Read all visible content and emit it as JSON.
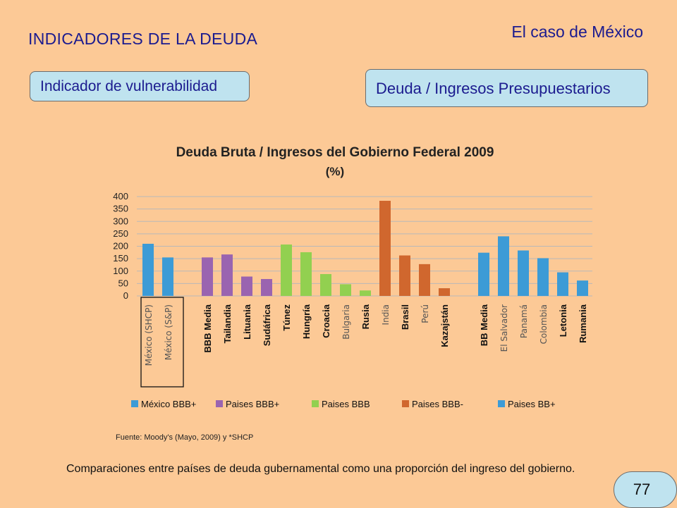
{
  "slide": {
    "title": "INDICADORES DE LA DEUDA",
    "subtitle": "El caso de México",
    "left_box": "Indicador de vulnerabilidad",
    "right_box": "Deuda / Ingresos Presupuestarios",
    "source": "Fuente: Moody's (Mayo, 2009) y *SHCP",
    "caption": "Comparaciones entre países de deuda gubernamental como una proporción del ingreso del gobierno.",
    "page_number": "77"
  },
  "chart_data": {
    "type": "bar",
    "title": "Deuda Bruta / Ingresos del Gobierno Federal 2009",
    "subtitle": "(%)",
    "ylim": [
      0,
      400
    ],
    "yticks": [
      0,
      50,
      100,
      150,
      200,
      250,
      300,
      350,
      400
    ],
    "grid": true,
    "legend_position": "bottom",
    "categories": [
      "México (SHCP)",
      "México (S&P)",
      "BBB Media",
      "Tailandia",
      "Lituania",
      "Sudáfrica",
      "Túnez",
      "Hungría",
      "Croacia",
      "Bulgaria",
      "Rusia",
      "India",
      "Brasil",
      "Perú",
      "Kazajstán",
      "BB Media",
      "El Salvador",
      "Panamá",
      "Colombia",
      "Letonia",
      "Rumania"
    ],
    "groups": [
      "México BBB+",
      "México BBB+",
      "Paises BBB+",
      "Paises BBB+",
      "Paises BBB+",
      "Paises BBB+",
      "Paises BBB",
      "Paises BBB",
      "Paises BBB",
      "Paises BBB",
      "Paises BBB",
      "Paises BBB-",
      "Paises BBB-",
      "Paises BBB-",
      "Paises BBB-",
      "Paises BB+",
      "Paises BB+",
      "Paises BB+",
      "Paises BB+",
      "Paises BB+",
      "Paises BB+"
    ],
    "values": [
      210,
      155,
      155,
      167,
      78,
      68,
      207,
      176,
      88,
      47,
      22,
      383,
      163,
      128,
      31,
      174,
      240,
      183,
      152,
      95,
      62
    ],
    "label_styles": [
      "regular",
      "regular",
      "bold",
      "bold",
      "bold",
      "bold",
      "bold",
      "bold",
      "bold",
      "regular",
      "bold",
      "regular",
      "bold",
      "regular",
      "bold",
      "bold",
      "regular",
      "regular",
      "regular",
      "bold",
      "bold"
    ],
    "highlight": [
      "México (SHCP)",
      "México (S&P)"
    ],
    "legend": [
      {
        "label": "México BBB+",
        "color": "#3c9bd6"
      },
      {
        "label": "Paises BBB+",
        "color": "#9a64b0"
      },
      {
        "label": "Paises BBB",
        "color": "#92d050"
      },
      {
        "label": "Paises BBB-",
        "color": "#d0672e"
      },
      {
        "label": "Paises BB+",
        "color": "#3c9bd6"
      }
    ]
  }
}
